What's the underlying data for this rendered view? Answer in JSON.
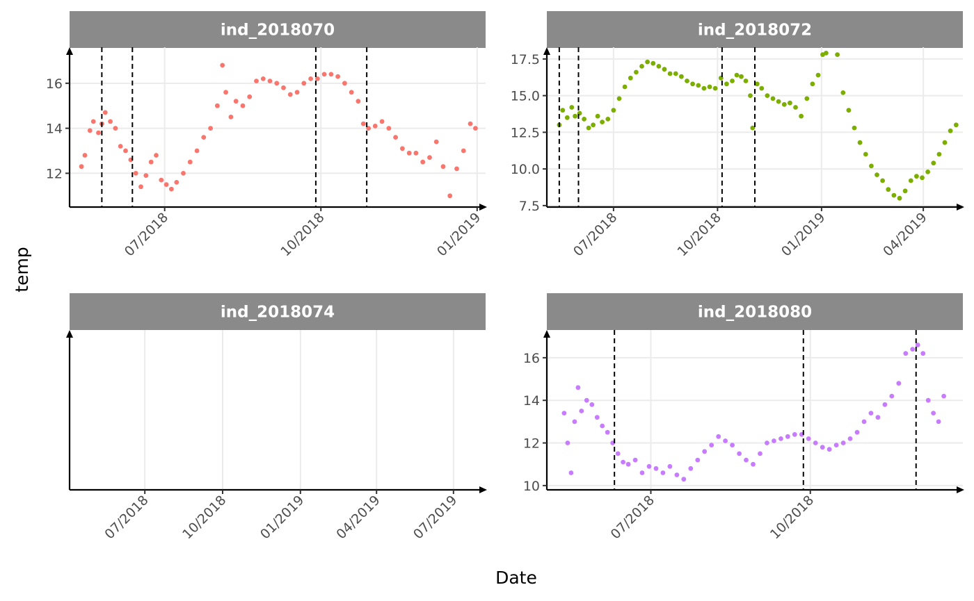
{
  "xlabel": "Date",
  "ylabel": "temp",
  "colors": {
    "strip_background": "#8a8a8a",
    "grid": "#ebebeb",
    "axis": "#000000",
    "change_line": "#000000"
  },
  "chart_data": [
    {
      "type": "scatter",
      "title": "ind_2018070",
      "color": "#f8766d",
      "x_ticks": [
        "07/2018",
        "10/2018",
        "01/2019"
      ],
      "x_range": [
        "2018-05-06",
        "2019-01-06"
      ],
      "y_ticks": [
        12,
        14,
        16
      ],
      "ylim": [
        10.5,
        17.6
      ],
      "grid": true,
      "change_points": [
        "2018-05-25",
        "2018-06-12",
        "2018-09-28",
        "2018-10-28"
      ],
      "series": [
        {
          "x": [
            "2018-05-13",
            "2018-05-15",
            "2018-05-18",
            "2018-05-20",
            "2018-05-23",
            "2018-05-25",
            "2018-05-27",
            "2018-05-30",
            "2018-06-02",
            "2018-06-05",
            "2018-06-08",
            "2018-06-11",
            "2018-06-14",
            "2018-06-17",
            "2018-06-20",
            "2018-06-23",
            "2018-06-26",
            "2018-06-29",
            "2018-07-02",
            "2018-07-05",
            "2018-07-08",
            "2018-07-12",
            "2018-07-16",
            "2018-07-20",
            "2018-07-24",
            "2018-07-28",
            "2018-08-01",
            "2018-08-04",
            "2018-08-06",
            "2018-08-09",
            "2018-08-12",
            "2018-08-16",
            "2018-08-20",
            "2018-08-24",
            "2018-08-28",
            "2018-09-01",
            "2018-09-05",
            "2018-09-09",
            "2018-09-13",
            "2018-09-17",
            "2018-09-21",
            "2018-09-25",
            "2018-09-29",
            "2018-10-03",
            "2018-10-07",
            "2018-10-11",
            "2018-10-15",
            "2018-10-19",
            "2018-10-23",
            "2018-10-26",
            "2018-10-29",
            "2018-11-02",
            "2018-11-06",
            "2018-11-10",
            "2018-11-14",
            "2018-11-18",
            "2018-11-22",
            "2018-11-26",
            "2018-11-30",
            "2018-12-04",
            "2018-12-08",
            "2018-12-12",
            "2018-12-16",
            "2018-12-20",
            "2018-12-24",
            "2018-12-28",
            "2018-12-31"
          ],
          "y": [
            12.3,
            12.8,
            13.9,
            14.3,
            13.8,
            14.2,
            14.7,
            14.3,
            14.0,
            13.2,
            13.0,
            12.6,
            12.0,
            11.4,
            11.9,
            12.5,
            12.8,
            11.7,
            11.5,
            11.3,
            11.6,
            12.0,
            12.5,
            13.0,
            13.6,
            14.0,
            15.0,
            16.8,
            15.6,
            14.5,
            15.2,
            15.0,
            15.4,
            16.1,
            16.2,
            16.1,
            16.0,
            15.8,
            15.5,
            15.6,
            16.0,
            16.2,
            16.2,
            16.4,
            16.4,
            16.3,
            16.0,
            15.6,
            15.2,
            14.2,
            14.0,
            14.1,
            14.3,
            14.0,
            13.6,
            13.1,
            12.9,
            12.9,
            12.5,
            12.7,
            13.4,
            12.3,
            11.0,
            12.2,
            13.0,
            14.2,
            14.0
          ]
        }
      ]
    },
    {
      "type": "scatter",
      "title": "ind_2018072",
      "color": "#7cae00",
      "x_ticks": [
        "07/2018",
        "10/2018",
        "01/2019",
        "04/2019"
      ],
      "x_range": [
        "2018-05-03",
        "2019-05-06"
      ],
      "y_ticks": [
        7.5,
        10.0,
        12.5,
        15.0,
        17.5
      ],
      "y_tick_labels": [
        "7.5",
        "10.0",
        "12.5",
        "15.0",
        "17.5"
      ],
      "ylim": [
        7.4,
        18.3
      ],
      "grid": true,
      "change_points": [
        "2018-05-14",
        "2018-05-31",
        "2018-10-05",
        "2018-11-03"
      ],
      "series": [
        {
          "x": [
            "2018-05-14",
            "2018-05-17",
            "2018-05-21",
            "2018-05-25",
            "2018-05-28",
            "2018-06-01",
            "2018-06-05",
            "2018-06-09",
            "2018-06-13",
            "2018-06-17",
            "2018-06-21",
            "2018-06-26",
            "2018-07-01",
            "2018-07-06",
            "2018-07-11",
            "2018-07-16",
            "2018-07-21",
            "2018-07-26",
            "2018-07-31",
            "2018-08-05",
            "2018-08-10",
            "2018-08-15",
            "2018-08-20",
            "2018-08-25",
            "2018-08-30",
            "2018-09-04",
            "2018-09-09",
            "2018-09-14",
            "2018-09-19",
            "2018-09-24",
            "2018-09-29",
            "2018-10-04",
            "2018-10-09",
            "2018-10-14",
            "2018-10-18",
            "2018-10-22",
            "2018-10-26",
            "2018-10-30",
            "2018-11-01",
            "2018-11-05",
            "2018-11-09",
            "2018-11-14",
            "2018-11-19",
            "2018-11-24",
            "2018-11-29",
            "2018-12-04",
            "2018-12-09",
            "2018-12-14",
            "2018-12-19",
            "2018-12-24",
            "2018-12-29",
            "2019-01-02",
            "2019-01-05",
            "2019-01-15",
            "2019-01-20",
            "2019-01-25",
            "2019-01-30",
            "2019-02-04",
            "2019-02-09",
            "2019-02-14",
            "2019-02-19",
            "2019-02-24",
            "2019-03-01",
            "2019-03-06",
            "2019-03-11",
            "2019-03-16",
            "2019-03-21",
            "2019-03-26",
            "2019-03-31",
            "2019-04-05",
            "2019-04-10",
            "2019-04-15",
            "2019-04-20",
            "2019-04-25",
            "2019-04-30"
          ],
          "y": [
            13.0,
            14.0,
            13.5,
            14.2,
            13.6,
            13.8,
            13.4,
            12.8,
            13.0,
            13.6,
            13.2,
            13.4,
            14.0,
            14.8,
            15.6,
            16.2,
            16.6,
            17.0,
            17.3,
            17.2,
            17.0,
            16.8,
            16.5,
            16.5,
            16.3,
            16.0,
            15.8,
            15.7,
            15.5,
            15.6,
            15.5,
            16.2,
            15.8,
            16.0,
            16.4,
            16.3,
            16.0,
            15.0,
            12.8,
            15.8,
            15.5,
            15.0,
            14.8,
            14.6,
            14.4,
            14.5,
            14.2,
            13.6,
            14.8,
            15.8,
            16.4,
            17.8,
            17.9,
            17.8,
            15.2,
            14.0,
            12.8,
            11.8,
            11.0,
            10.2,
            9.6,
            9.2,
            8.6,
            8.2,
            8.0,
            8.5,
            9.2,
            9.5,
            9.4,
            9.8,
            10.4,
            11.0,
            11.8,
            12.6,
            13.0
          ]
        }
      ]
    },
    {
      "type": "scatter",
      "title": "ind_2018074",
      "color": "#00bfc4",
      "x_ticks": [
        "07/2018",
        "10/2018",
        "01/2019",
        "04/2019",
        "07/2019"
      ],
      "x_range": [
        "2018-04-03",
        "2019-08-08"
      ],
      "y_ticks": [],
      "grid": true,
      "change_points": [],
      "series": [
        {
          "x": [],
          "y": []
        }
      ]
    },
    {
      "type": "scatter",
      "title": "ind_2018080",
      "color": "#c77cff",
      "x_ticks": [
        "07/2018",
        "10/2018"
      ],
      "x_range": [
        "2018-05-02",
        "2018-12-28"
      ],
      "y_ticks": [
        10,
        12,
        14,
        16
      ],
      "ylim": [
        9.8,
        17.3
      ],
      "grid": true,
      "change_points": [
        "2018-06-10",
        "2018-09-27",
        "2018-12-01"
      ],
      "series": [
        {
          "x": [
            "2018-05-12",
            "2018-05-14",
            "2018-05-16",
            "2018-05-18",
            "2018-05-20",
            "2018-05-22",
            "2018-05-25",
            "2018-05-28",
            "2018-05-31",
            "2018-06-03",
            "2018-06-06",
            "2018-06-09",
            "2018-06-12",
            "2018-06-15",
            "2018-06-18",
            "2018-06-22",
            "2018-06-26",
            "2018-06-30",
            "2018-07-04",
            "2018-07-08",
            "2018-07-12",
            "2018-07-16",
            "2018-07-20",
            "2018-07-24",
            "2018-07-28",
            "2018-08-01",
            "2018-08-05",
            "2018-08-09",
            "2018-08-13",
            "2018-08-17",
            "2018-08-21",
            "2018-08-25",
            "2018-08-29",
            "2018-09-02",
            "2018-09-06",
            "2018-09-10",
            "2018-09-14",
            "2018-09-18",
            "2018-09-22",
            "2018-09-26",
            "2018-09-30",
            "2018-10-04",
            "2018-10-08",
            "2018-10-12",
            "2018-10-16",
            "2018-10-20",
            "2018-10-24",
            "2018-10-28",
            "2018-11-01",
            "2018-11-05",
            "2018-11-09",
            "2018-11-13",
            "2018-11-17",
            "2018-11-21",
            "2018-11-25",
            "2018-11-29",
            "2018-12-02",
            "2018-12-05",
            "2018-12-08",
            "2018-12-11",
            "2018-12-14",
            "2018-12-17"
          ],
          "y": [
            13.4,
            12.0,
            10.6,
            13.0,
            14.6,
            13.5,
            14.0,
            13.8,
            13.2,
            12.8,
            12.5,
            12.0,
            11.5,
            11.1,
            11.0,
            11.2,
            10.6,
            10.9,
            10.8,
            10.6,
            10.9,
            10.5,
            10.3,
            10.8,
            11.2,
            11.6,
            11.9,
            12.3,
            12.1,
            11.9,
            11.5,
            11.2,
            11.0,
            11.5,
            12.0,
            12.1,
            12.2,
            12.3,
            12.4,
            12.4,
            12.2,
            12.0,
            11.8,
            11.7,
            11.9,
            12.0,
            12.2,
            12.5,
            13.0,
            13.4,
            13.2,
            13.8,
            14.2,
            14.8,
            16.2,
            16.4,
            16.6,
            16.2,
            14.0,
            13.4,
            13.0,
            14.2
          ]
        }
      ]
    }
  ]
}
